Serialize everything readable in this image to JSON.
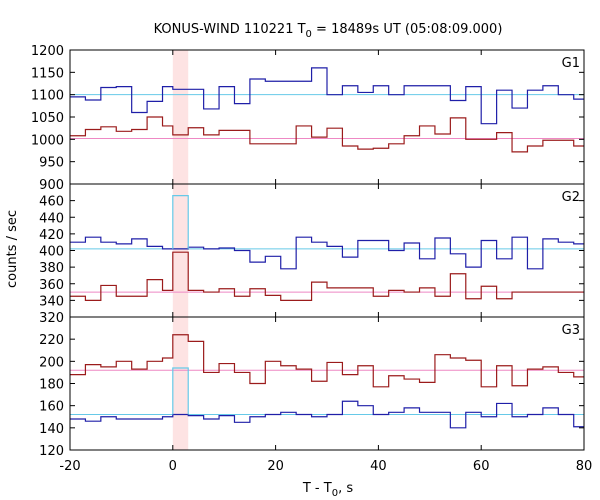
{
  "chart_data": {
    "type": "line",
    "title": "KONUS-WIND 110221 T",
    "title_sub": "0",
    "title_rest": " = 18489s UT (05:08:09.000)",
    "xlabel_main": "T - T",
    "xlabel_sub": "0",
    "xlabel_rest": ", s",
    "ylabel": "counts / sec",
    "xlim": [
      -20,
      80
    ],
    "x_ticks": [
      -20,
      0,
      20,
      40,
      60,
      80
    ],
    "shaded_interval": [
      0,
      3
    ],
    "bin_edges": [
      -20,
      -17,
      -14,
      -11,
      -8,
      -5,
      -2,
      0,
      3,
      6,
      9,
      12,
      15,
      18,
      21,
      24,
      27,
      30,
      33,
      36,
      39,
      42,
      45,
      48,
      51,
      54,
      57,
      60,
      63,
      66,
      69,
      72,
      75,
      78,
      80
    ],
    "colors": {
      "blue": "#1f1fa8",
      "red": "#9b1b1b",
      "bg_line_blue": "#66c9e8",
      "bg_line_red": "#ee88c4",
      "shade": "#fde3e3"
    },
    "panels": [
      {
        "name": "G1",
        "ylim": [
          900,
          1200
        ],
        "y_ticks": [
          950,
          1000,
          1050,
          1100,
          1150,
          1200
        ],
        "y_ticks_bottom_label": "900",
        "background_blue": 1100,
        "background_red": 1002,
        "series": [
          {
            "color": "blue",
            "values": [
              1095,
              1088,
              1116,
              1118,
              1060,
              1085,
              1118,
              1112,
              1112,
              1068,
              1118,
              1080,
              1135,
              1130,
              1130,
              1130,
              1160,
              1100,
              1120,
              1105,
              1120,
              1100,
              1120,
              1120,
              1120,
              1087,
              1118,
              1035,
              1110,
              1070,
              1110,
              1120,
              1100,
              1090
            ]
          },
          {
            "color": "red",
            "values": [
              1008,
              1022,
              1028,
              1018,
              1022,
              1050,
              1030,
              1010,
              1026,
              1010,
              1020,
              1020,
              990,
              990,
              990,
              1030,
              1005,
              1025,
              985,
              978,
              980,
              990,
              1008,
              1030,
              1012,
              1048,
              1000,
              1000,
              1015,
              972,
              985,
              998,
              998,
              985
            ]
          }
        ]
      },
      {
        "name": "G2",
        "ylim": [
          320,
          480
        ],
        "y_ticks": [
          320,
          340,
          360,
          380,
          400,
          420,
          440,
          460
        ],
        "background_blue": 402,
        "background_red": 350,
        "series": [
          {
            "color": "blue",
            "values": [
              410,
              416,
              410,
              408,
              414,
              405,
              402,
              402,
              404,
              402,
              403,
              400,
              386,
              393,
              378,
              416,
              410,
              405,
              392,
              412,
              412,
              400,
              409,
              390,
              415,
              396,
              380,
              412,
              390,
              416,
              378,
              414,
              410,
              408
            ]
          },
          {
            "color": "red",
            "values": [
              345,
              340,
              358,
              345,
              345,
              365,
              352,
              398,
              352,
              350,
              354,
              345,
              354,
              346,
              340,
              340,
              362,
              355,
              355,
              355,
              345,
              352,
              350,
              355,
              345,
              372,
              342,
              357,
              342,
              350,
              350,
              350,
              350,
              350
            ]
          },
          {
            "color": "bg_line_blue",
            "values": [
              null,
              null,
              null,
              null,
              null,
              null,
              null,
              466,
              null,
              null,
              null,
              null,
              null,
              null,
              null,
              null,
              null,
              null,
              null,
              null,
              null,
              null,
              null,
              null,
              null,
              null,
              null,
              null,
              null,
              null,
              null,
              null,
              null,
              null
            ]
          }
        ]
      },
      {
        "name": "G3",
        "ylim": [
          120,
          240
        ],
        "y_ticks": [
          120,
          140,
          160,
          180,
          200,
          220
        ],
        "background_blue": 152,
        "background_red": 192,
        "series": [
          {
            "color": "red",
            "values": [
              188,
              197,
              195,
              200,
              193,
              200,
              203,
              224,
              218,
              190,
              198,
              190,
              180,
              200,
              196,
              193,
              182,
              199,
              188,
              196,
              177,
              187,
              184,
              181,
              206,
              203,
              201,
              177,
              196,
              178,
              193,
              195,
              190,
              186
            ]
          },
          {
            "color": "blue",
            "values": [
              148,
              146,
              150,
              148,
              148,
              148,
              150,
              152,
              151,
              148,
              151,
              145,
              150,
              152,
              154,
              152,
              150,
              152,
              164,
              160,
              152,
              154,
              158,
              154,
              154,
              140,
              154,
              150,
              162,
              150,
              152,
              158,
              152,
              141
            ]
          },
          {
            "color": "bg_line_blue",
            "values": [
              null,
              null,
              null,
              null,
              null,
              null,
              null,
              194,
              null,
              null,
              null,
              null,
              null,
              null,
              null,
              null,
              null,
              null,
              null,
              null,
              null,
              null,
              null,
              null,
              null,
              null,
              null,
              null,
              null,
              null,
              null,
              null,
              null,
              null
            ]
          }
        ]
      }
    ]
  }
}
